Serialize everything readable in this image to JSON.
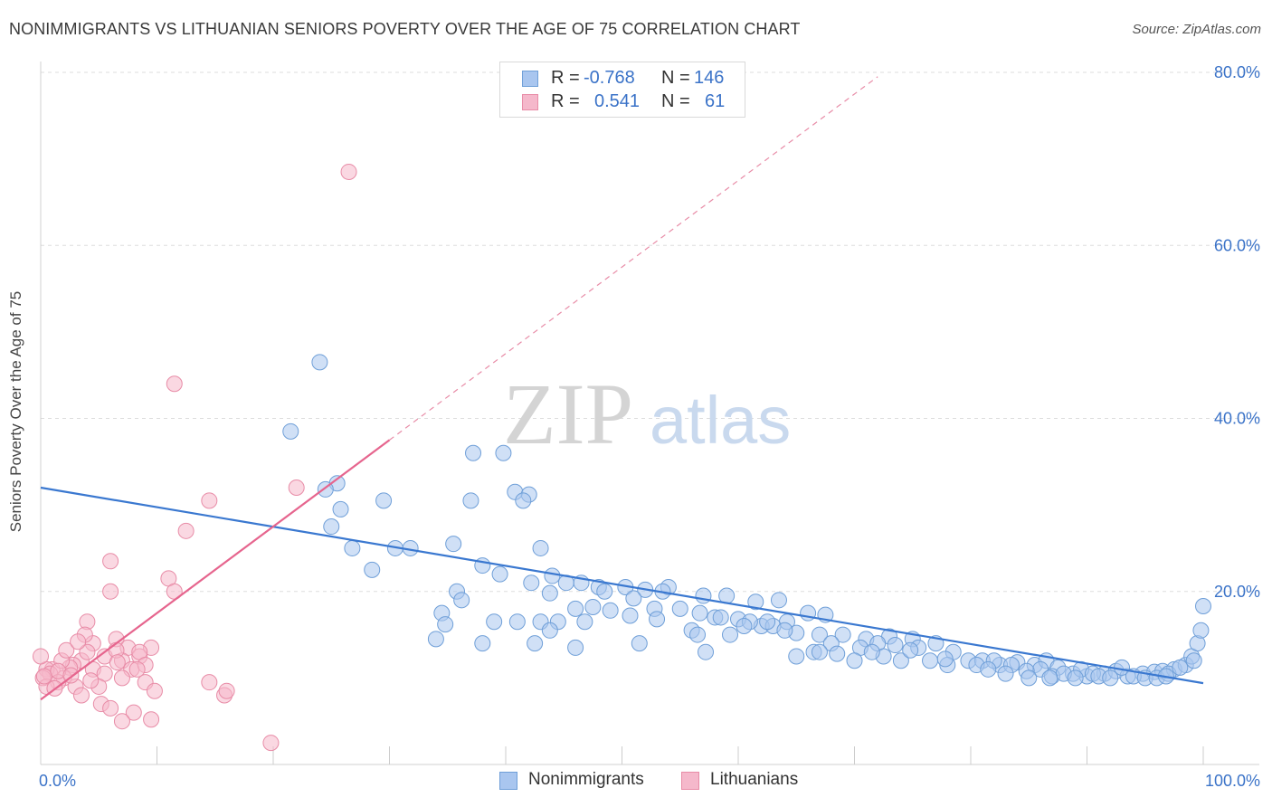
{
  "title": "NONIMMIGRANTS VS LITHUANIAN SENIORS POVERTY OVER THE AGE OF 75 CORRELATION CHART",
  "source": "Source: ZipAtlas.com",
  "watermark": {
    "part1": "ZIP",
    "part2": "atlas"
  },
  "legend": {
    "rows": [
      {
        "r_label": "R =",
        "r_value": "-0.768",
        "n_label": "N =",
        "n_value": "146"
      },
      {
        "r_label": "R =",
        "r_value": "0.541",
        "n_label": "N =",
        "n_value": "61"
      }
    ]
  },
  "chart_data": {
    "type": "scatter",
    "title": "NONIMMIGRANTS VS LITHUANIAN SENIORS POVERTY OVER THE AGE OF 75 CORRELATION CHART",
    "xlabel": "",
    "ylabel": "Seniors Poverty Over the Age of 75",
    "xlim": [
      0,
      100
    ],
    "ylim": [
      0,
      85
    ],
    "x_tick_labels": [
      "0.0%",
      "100.0%"
    ],
    "y_ticks": [
      20,
      40,
      60,
      80
    ],
    "y_tick_labels": [
      "20.0%",
      "40.0%",
      "60.0%",
      "80.0%"
    ],
    "grid": true,
    "legend_position": "top-center",
    "colors": {
      "blue_fill": "#a9c6ef",
      "blue_stroke": "#6f9fd8",
      "blue_line": "#3a78d0",
      "pink_fill": "#f5b8cb",
      "pink_stroke": "#e88ca7",
      "pink_line": "#e6658e",
      "tick_text": "#3b73c8",
      "grid": "#dddddd"
    },
    "series": [
      {
        "name": "Nonimmigrants",
        "R": -0.768,
        "N": 146,
        "trend": {
          "x": [
            0,
            100
          ],
          "y": [
            32.0,
            9.4
          ]
        },
        "points": [
          [
            24.0,
            46.5
          ],
          [
            21.5,
            38.5
          ],
          [
            25.5,
            32.5
          ],
          [
            24.5,
            31.8
          ],
          [
            29.5,
            30.5
          ],
          [
            25.0,
            27.5
          ],
          [
            25.8,
            29.5
          ],
          [
            37.2,
            36.0
          ],
          [
            39.8,
            36.0
          ],
          [
            40.8,
            31.5
          ],
          [
            42.0,
            31.2
          ],
          [
            37.0,
            30.5
          ],
          [
            41.5,
            30.5
          ],
          [
            30.5,
            25.0
          ],
          [
            26.8,
            25.0
          ],
          [
            31.8,
            25.0
          ],
          [
            35.5,
            25.5
          ],
          [
            43.0,
            25.0
          ],
          [
            28.5,
            22.5
          ],
          [
            38.0,
            23.0
          ],
          [
            39.5,
            22.0
          ],
          [
            42.2,
            21.0
          ],
          [
            45.2,
            21.0
          ],
          [
            43.8,
            19.8
          ],
          [
            48.0,
            20.5
          ],
          [
            50.3,
            20.5
          ],
          [
            52.0,
            20.2
          ],
          [
            54.0,
            20.5
          ],
          [
            57.0,
            19.5
          ],
          [
            59.0,
            19.5
          ],
          [
            61.5,
            18.8
          ],
          [
            63.5,
            19.0
          ],
          [
            35.8,
            20.0
          ],
          [
            36.2,
            19.0
          ],
          [
            47.5,
            18.2
          ],
          [
            46.0,
            18.0
          ],
          [
            49.0,
            17.8
          ],
          [
            50.7,
            17.2
          ],
          [
            52.8,
            18.0
          ],
          [
            55.0,
            18.0
          ],
          [
            56.7,
            17.5
          ],
          [
            58.0,
            17.0
          ],
          [
            60.0,
            16.8
          ],
          [
            62.0,
            16.0
          ],
          [
            64.2,
            16.5
          ],
          [
            66.0,
            17.5
          ],
          [
            67.5,
            17.3
          ],
          [
            34.5,
            17.5
          ],
          [
            39.0,
            16.5
          ],
          [
            41.0,
            16.5
          ],
          [
            43.0,
            16.5
          ],
          [
            44.5,
            16.5
          ],
          [
            46.8,
            16.5
          ],
          [
            34.8,
            16.2
          ],
          [
            43.8,
            15.5
          ],
          [
            56.0,
            15.5
          ],
          [
            59.3,
            15.0
          ],
          [
            61.0,
            16.5
          ],
          [
            63.0,
            16.0
          ],
          [
            65.0,
            15.2
          ],
          [
            67.0,
            15.0
          ],
          [
            69.0,
            15.0
          ],
          [
            71.0,
            14.5
          ],
          [
            73.0,
            14.8
          ],
          [
            75.0,
            14.5
          ],
          [
            77.0,
            14.0
          ],
          [
            73.5,
            13.8
          ],
          [
            72.0,
            14.0
          ],
          [
            70.5,
            13.5
          ],
          [
            68.0,
            14.0
          ],
          [
            66.5,
            13.0
          ],
          [
            65.0,
            12.5
          ],
          [
            75.5,
            13.5
          ],
          [
            78.5,
            13.0
          ],
          [
            79.8,
            12.0
          ],
          [
            81.0,
            12.0
          ],
          [
            82.5,
            11.5
          ],
          [
            84.0,
            11.8
          ],
          [
            85.5,
            11.5
          ],
          [
            86.5,
            12.0
          ],
          [
            87.5,
            11.2
          ],
          [
            88.8,
            10.5
          ],
          [
            90.0,
            10.2
          ],
          [
            91.5,
            10.5
          ],
          [
            92.5,
            10.8
          ],
          [
            93.5,
            10.2
          ],
          [
            94.8,
            10.5
          ],
          [
            95.8,
            10.7
          ],
          [
            96.5,
            10.8
          ],
          [
            97.5,
            11.0
          ],
          [
            98.5,
            11.5
          ],
          [
            99.0,
            12.5
          ],
          [
            99.5,
            14.0
          ],
          [
            99.8,
            15.5
          ],
          [
            100.0,
            18.3
          ],
          [
            93.0,
            11.2
          ],
          [
            89.5,
            11.0
          ],
          [
            86.0,
            11.0
          ],
          [
            84.8,
            10.8
          ],
          [
            83.5,
            11.5
          ],
          [
            82.0,
            12.0
          ],
          [
            80.5,
            11.5
          ],
          [
            78.0,
            11.5
          ],
          [
            76.5,
            12.0
          ],
          [
            74.0,
            12.0
          ],
          [
            72.5,
            12.5
          ],
          [
            70.0,
            12.0
          ],
          [
            68.5,
            12.8
          ],
          [
            67.0,
            13.0
          ],
          [
            71.5,
            13.0
          ],
          [
            74.8,
            13.2
          ],
          [
            53.5,
            20.0
          ],
          [
            44.0,
            21.8
          ],
          [
            46.5,
            21.0
          ],
          [
            48.5,
            20.0
          ],
          [
            51.0,
            19.2
          ],
          [
            53.0,
            16.8
          ],
          [
            56.5,
            15.0
          ],
          [
            58.5,
            17.0
          ],
          [
            60.5,
            16.0
          ],
          [
            62.5,
            16.5
          ],
          [
            64.0,
            15.5
          ],
          [
            57.2,
            13.0
          ],
          [
            51.5,
            14.0
          ],
          [
            46.0,
            13.5
          ],
          [
            42.5,
            14.0
          ],
          [
            34.0,
            14.5
          ],
          [
            38.0,
            14.0
          ],
          [
            81.5,
            11.0
          ],
          [
            83.0,
            10.5
          ],
          [
            87.0,
            10.2
          ],
          [
            88.0,
            10.5
          ],
          [
            89.0,
            10.0
          ],
          [
            90.5,
            10.5
          ],
          [
            91.0,
            10.2
          ],
          [
            92.0,
            10.0
          ],
          [
            94.0,
            10.2
          ],
          [
            95.0,
            10.0
          ],
          [
            96.0,
            10.0
          ],
          [
            97.0,
            10.5
          ],
          [
            98.0,
            11.2
          ],
          [
            85.0,
            10.0
          ],
          [
            86.8,
            10.0
          ],
          [
            96.8,
            10.2
          ],
          [
            99.2,
            12.0
          ],
          [
            77.8,
            12.2
          ]
        ]
      },
      {
        "name": "Lithuanians",
        "R": 0.541,
        "N": 61,
        "trend": {
          "x": [
            0,
            30
          ],
          "y": [
            7.5,
            37.5
          ]
        },
        "trend_extension": {
          "x": [
            30,
            72
          ],
          "y": [
            37.5,
            79.5
          ]
        },
        "points": [
          [
            26.5,
            68.5
          ],
          [
            11.5,
            44.0
          ],
          [
            14.5,
            30.5
          ],
          [
            22.0,
            32.0
          ],
          [
            12.5,
            27.0
          ],
          [
            6.0,
            23.5
          ],
          [
            11.0,
            21.5
          ],
          [
            11.5,
            20.0
          ],
          [
            6.0,
            20.0
          ],
          [
            4.0,
            16.5
          ],
          [
            4.5,
            14.0
          ],
          [
            3.8,
            15.0
          ],
          [
            6.5,
            14.5
          ],
          [
            7.5,
            13.5
          ],
          [
            3.5,
            12.0
          ],
          [
            7.0,
            12.0
          ],
          [
            9.5,
            13.5
          ],
          [
            8.5,
            12.5
          ],
          [
            2.8,
            11.5
          ],
          [
            4.5,
            11.0
          ],
          [
            5.5,
            10.5
          ],
          [
            7.8,
            11.0
          ],
          [
            1.0,
            11.0
          ],
          [
            2.5,
            11.2
          ],
          [
            0.5,
            11.0
          ],
          [
            0.8,
            10.5
          ],
          [
            2.0,
            10.0
          ],
          [
            1.5,
            9.5
          ],
          [
            3.0,
            9.0
          ],
          [
            5.0,
            9.0
          ],
          [
            7.0,
            10.0
          ],
          [
            9.0,
            9.5
          ],
          [
            14.5,
            9.5
          ],
          [
            0.2,
            10.0
          ],
          [
            0.5,
            9.0
          ],
          [
            1.2,
            8.8
          ],
          [
            3.5,
            8.0
          ],
          [
            5.2,
            7.0
          ],
          [
            6.0,
            6.5
          ],
          [
            8.0,
            6.0
          ],
          [
            9.8,
            8.5
          ],
          [
            15.8,
            8.0
          ],
          [
            16.0,
            8.5
          ],
          [
            7.0,
            5.0
          ],
          [
            9.5,
            5.2
          ],
          [
            19.8,
            2.5
          ],
          [
            0.0,
            12.5
          ],
          [
            1.8,
            12.0
          ],
          [
            4.0,
            13.0
          ],
          [
            5.5,
            12.5
          ],
          [
            6.5,
            13.2
          ],
          [
            8.5,
            13.0
          ],
          [
            9.0,
            11.5
          ],
          [
            2.2,
            13.2
          ],
          [
            3.2,
            14.2
          ],
          [
            0.3,
            10.2
          ],
          [
            1.5,
            10.8
          ],
          [
            2.6,
            10.3
          ],
          [
            4.3,
            9.7
          ],
          [
            6.6,
            11.8
          ],
          [
            8.3,
            11.0
          ]
        ]
      }
    ]
  }
}
